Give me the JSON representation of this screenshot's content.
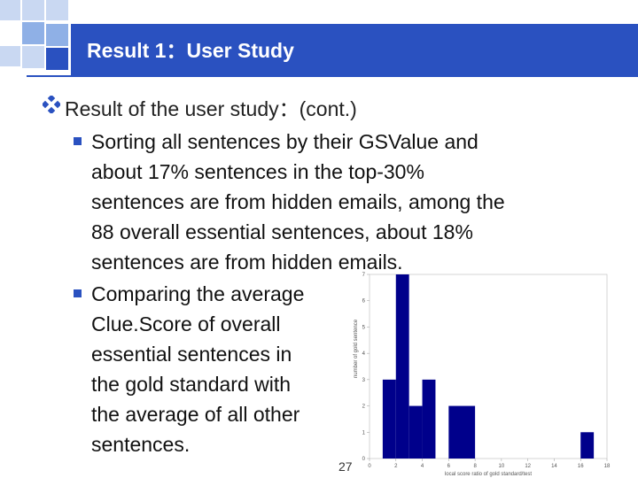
{
  "header": {
    "title": "Result 1：User Study"
  },
  "content": {
    "level1": "Result of the user study：(cont.)",
    "bullet1_lines": [
      "Sorting all sentences by their GSValue and",
      "about 17% sentences in the top-30%",
      "sentences are from hidden emails, among the",
      "88 overall essential sentences, about 18%",
      "sentences are from hidden emails."
    ],
    "bullet2_lines": [
      "Comparing the average",
      "Clue.Score of overall",
      "essential sentences in",
      "the gold standard with",
      "the average of all other",
      "sentences."
    ]
  },
  "page_number": "27",
  "colors": {
    "accent": "#2a51c0",
    "bar": "#00008b",
    "light_square": "#c9d8f2",
    "mid_square": "#8fb0e6"
  },
  "chart_data": {
    "type": "bar",
    "xlabel": "local score ratio of gold standard/test",
    "ylabel": "number of gold sentence",
    "x_ticks": [
      "0",
      "2",
      "4",
      "6",
      "8",
      "10",
      "12",
      "14",
      "16",
      "18"
    ],
    "y_ticks": [
      "0",
      "1",
      "2",
      "3",
      "4",
      "5",
      "6",
      "7"
    ],
    "xlim": [
      0,
      18
    ],
    "ylim": [
      0,
      7
    ],
    "bins": [
      {
        "x0": 1,
        "x1": 2,
        "value": 3
      },
      {
        "x0": 2,
        "x1": 3,
        "value": 7
      },
      {
        "x0": 3,
        "x1": 4,
        "value": 2
      },
      {
        "x0": 4,
        "x1": 5,
        "value": 3
      },
      {
        "x0": 6,
        "x1": 8,
        "value": 2
      },
      {
        "x0": 16,
        "x1": 17,
        "value": 1
      }
    ]
  }
}
